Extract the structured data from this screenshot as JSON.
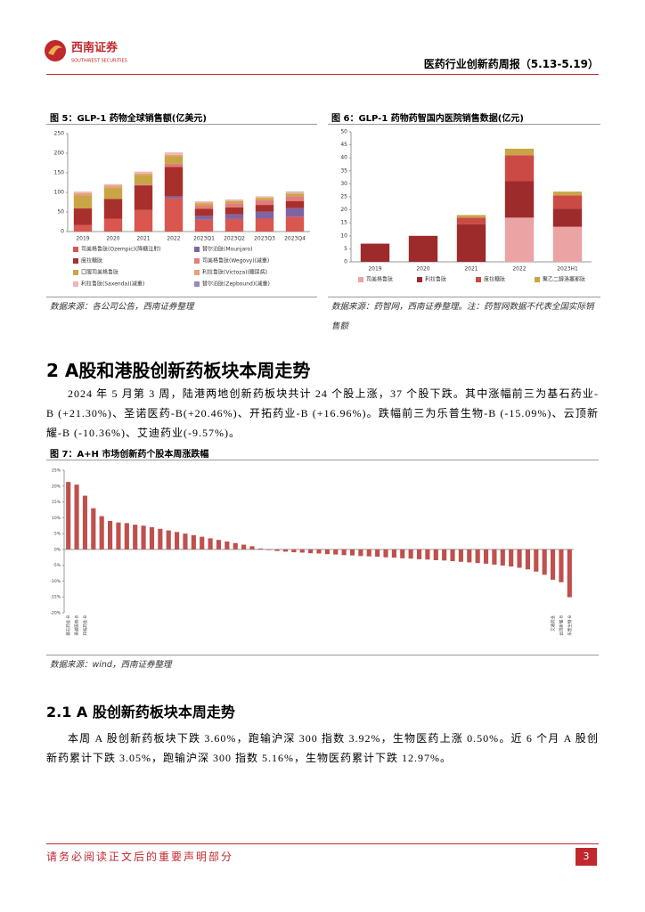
{
  "header": {
    "logo_name": "西南证券",
    "logo_sub": "SOUTHWEST SECURITIES",
    "report_title": "医药行业创新药周报（5.13-5.19）"
  },
  "figure_5": {
    "caption": "图 5：GLP-1 药物全球销售额(亿美元)",
    "source": "数据来源：各公司公告，西南证券整理",
    "chart_data": {
      "type": "bar",
      "stacked": true,
      "categories": [
        "2019",
        "2020",
        "2021",
        "2022",
        "2023Q1",
        "2023Q2",
        "2023Q3",
        "2023Q4"
      ],
      "ylim": [
        0,
        250
      ],
      "yticks": [
        0,
        50,
        100,
        150,
        200,
        250
      ],
      "series": [
        {
          "name": "司美格鲁肽(Ozempic)(降糖注射)",
          "color": "#d9574f",
          "values": [
            17,
            33,
            55,
            85,
            30,
            32,
            33,
            38
          ]
        },
        {
          "name": "替尔泊肽(Mounjaro)",
          "color": "#8064a2",
          "values": [
            0,
            0,
            0,
            5,
            10,
            12,
            18,
            22
          ]
        },
        {
          "name": "度拉糖肽",
          "color": "#a8302c",
          "values": [
            42,
            50,
            63,
            75,
            18,
            18,
            17,
            18
          ]
        },
        {
          "name": "司美格鲁肽(Wegovy)(减重)",
          "color": "#e47b7b",
          "values": [
            0,
            0,
            2,
            8,
            8,
            10,
            12,
            12
          ]
        },
        {
          "name": "口服司美格鲁肽",
          "color": "#c9a548",
          "values": [
            33,
            30,
            25,
            20,
            6,
            6,
            6,
            7
          ]
        },
        {
          "name": "利拉鲁肽(Victoza)(糖尿病)",
          "color": "#e8a07a",
          "values": [
            6,
            4,
            3,
            3,
            2,
            1,
            1,
            1
          ]
        },
        {
          "name": "利拉鲁肽(Saxenda)(减重)",
          "color": "#f0b6b6",
          "values": [
            4,
            4,
            5,
            6,
            3,
            3,
            3,
            3
          ]
        },
        {
          "name": "替尔泊肽(Zepbound)(减重)",
          "color": "#9a86c0",
          "values": [
            0,
            0,
            0,
            0,
            0,
            0,
            0,
            1
          ]
        }
      ]
    }
  },
  "figure_6": {
    "caption": "图 6：GLP-1 药物药智国内医院销售数据(亿元)",
    "source": "数据来源：药智网，西南证券整理。注：药智网数据不代表全国实际销售额",
    "chart_data": {
      "type": "bar",
      "stacked": true,
      "categories": [
        "2019",
        "2020",
        "2021",
        "2022",
        "2023H1"
      ],
      "ylim": [
        0,
        50
      ],
      "yticks": [
        0,
        5,
        10,
        15,
        20,
        25,
        30,
        35,
        40,
        45,
        50
      ],
      "series": [
        {
          "name": "司美格鲁肽",
          "color": "#eba3a3",
          "values": [
            0,
            0,
            0,
            17,
            13.5
          ]
        },
        {
          "name": "利拉鲁肽",
          "color": "#9e2b2b",
          "values": [
            7,
            10,
            14.5,
            14,
            7
          ]
        },
        {
          "name": "度拉糖肽",
          "color": "#cc4a45",
          "values": [
            0,
            0,
            2.5,
            10,
            5
          ]
        },
        {
          "name": "聚乙二醇洛塞那肽",
          "color": "#c9a548",
          "values": [
            0,
            0,
            1,
            2.5,
            1.5
          ]
        }
      ]
    }
  },
  "section_2": {
    "heading": "2 A股和港股创新药板块本周走势",
    "paragraph": "2024 年 5 月第 3 周，陆港两地创新药板块共计 24 个股上涨，37 个股下跌。其中涨幅前三为基石药业-B (+21.30%)、圣诺医药-B(+20.46%)、开拓药业-B (+16.96%)。跌幅前三为乐普生物-B (-15.09%)、云顶新耀-B (-10.36%)、艾迪药业(-9.57%)。"
  },
  "figure_7": {
    "caption": "图 7：A+H 市场创新药个股本周涨跌幅",
    "source": "数据来源：wind，西南证券整理",
    "chart_data": {
      "type": "bar",
      "color": "#c0504d",
      "categories": [
        "基石药业-B",
        "圣诺医药-B",
        "开拓药业-B",
        null,
        null,
        null,
        null,
        null,
        null,
        null,
        null,
        null,
        null,
        null,
        null,
        null,
        null,
        null,
        null,
        null,
        null,
        null,
        null,
        null,
        null,
        null,
        null,
        null,
        null,
        null,
        null,
        null,
        null,
        null,
        null,
        null,
        null,
        null,
        null,
        null,
        null,
        null,
        null,
        null,
        null,
        null,
        null,
        null,
        null,
        null,
        null,
        null,
        null,
        null,
        null,
        null,
        null,
        null,
        "艾迪药业",
        "云顶新耀-B",
        "乐普生物-B"
      ],
      "values": [
        21.3,
        20.46,
        16.96,
        13,
        10.5,
        9,
        8.5,
        8.3,
        7.8,
        7.5,
        7.0,
        6.5,
        6.0,
        5.5,
        5.0,
        4.5,
        4.0,
        3.5,
        3.0,
        2.5,
        2.0,
        1.5,
        1.0,
        0.3,
        -0.2,
        -0.5,
        -0.7,
        -0.9,
        -1.0,
        -1.2,
        -1.3,
        -1.5,
        -1.6,
        -1.8,
        -1.9,
        -2.1,
        -2.2,
        -2.3,
        -2.5,
        -2.6,
        -2.8,
        -2.9,
        -3.1,
        -3.2,
        -3.4,
        -3.5,
        -3.7,
        -3.9,
        -4.1,
        -4.3,
        -4.5,
        -4.8,
        -5.1,
        -5.4,
        -5.8,
        -6.3,
        -7.0,
        -8.0,
        -9.57,
        -10.36,
        -15.09
      ],
      "ylim": [
        -20,
        25
      ],
      "yticks": [
        {
          "value": 25,
          "label": "25%"
        },
        {
          "value": 20,
          "label": "20%"
        },
        {
          "value": 15,
          "label": "15%"
        },
        {
          "value": 10,
          "label": "10%"
        },
        {
          "value": 5,
          "label": "5%"
        },
        {
          "value": 0,
          "label": "0%"
        },
        {
          "value": -5,
          "label": "-5%"
        },
        {
          "value": -10,
          "label": "-10%"
        },
        {
          "value": -15,
          "label": "-15%"
        },
        {
          "value": -20,
          "label": "-20%"
        }
      ]
    }
  },
  "section_2_1": {
    "heading": "2.1 A 股创新药板块本周走势",
    "paragraph": "本周 A 股创新药板块下跌 3.60%，跑输沪深 300 指数 3.92%，生物医药上涨 0.50%。近 6 个月 A 股创新药累计下跌 3.05%，跑输沪深 300 指数 5.16%，生物医药累计下跌 12.97%。"
  },
  "footer": {
    "disclaimer": "请务必阅读正文后的重要声明部分",
    "page": "3"
  }
}
